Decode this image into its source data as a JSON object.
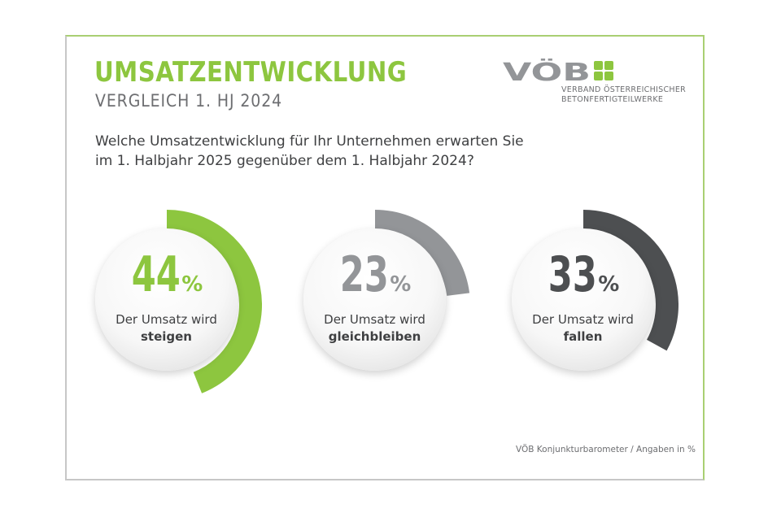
{
  "header": {
    "title": "UMSATZENTWICKLUNG",
    "subtitle": "VERGLEICH 1. HJ 2024",
    "question_line1": "Welche Umsatzentwicklung für Ihr Unternehmen erwarten Sie",
    "question_line2": "im 1. Halbjahr 2025 gegenüber dem 1. Halbjahr 2024?"
  },
  "logo": {
    "name": "VÖB",
    "line1": "VERBAND ÖSTERREICHISCHER",
    "line2": "BETONFERTIGTEILWERKE"
  },
  "chart_data": {
    "type": "pie",
    "title": "UMSATZENTWICKLUNG",
    "subtitle": "VERGLEICH 1. HJ 2024",
    "unit": "%",
    "series": [
      {
        "name": "steigen",
        "value": 44,
        "display": "44",
        "sign": "%",
        "label_line1": "Der Umsatz wird",
        "label_line2": "steigen",
        "color": "#8dc63f"
      },
      {
        "name": "gleichbleiben",
        "value": 23,
        "display": "23",
        "sign": "%",
        "label_line1": "Der Umsatz wird",
        "label_line2": "gleichbleiben",
        "color": "#939598"
      },
      {
        "name": "fallen",
        "value": 33,
        "display": "33",
        "sign": "%",
        "label_line1": "Der Umsatz wird",
        "label_line2": "fallen",
        "color": "#4d4f51"
      }
    ]
  },
  "footer": {
    "source": "VÖB Konjunkturbarometer / Angaben in %"
  },
  "colors": {
    "accent": "#8dc63f",
    "frame_border": "#a9cf72",
    "text_dark": "#3f4042",
    "text_gray": "#6d6e71"
  }
}
